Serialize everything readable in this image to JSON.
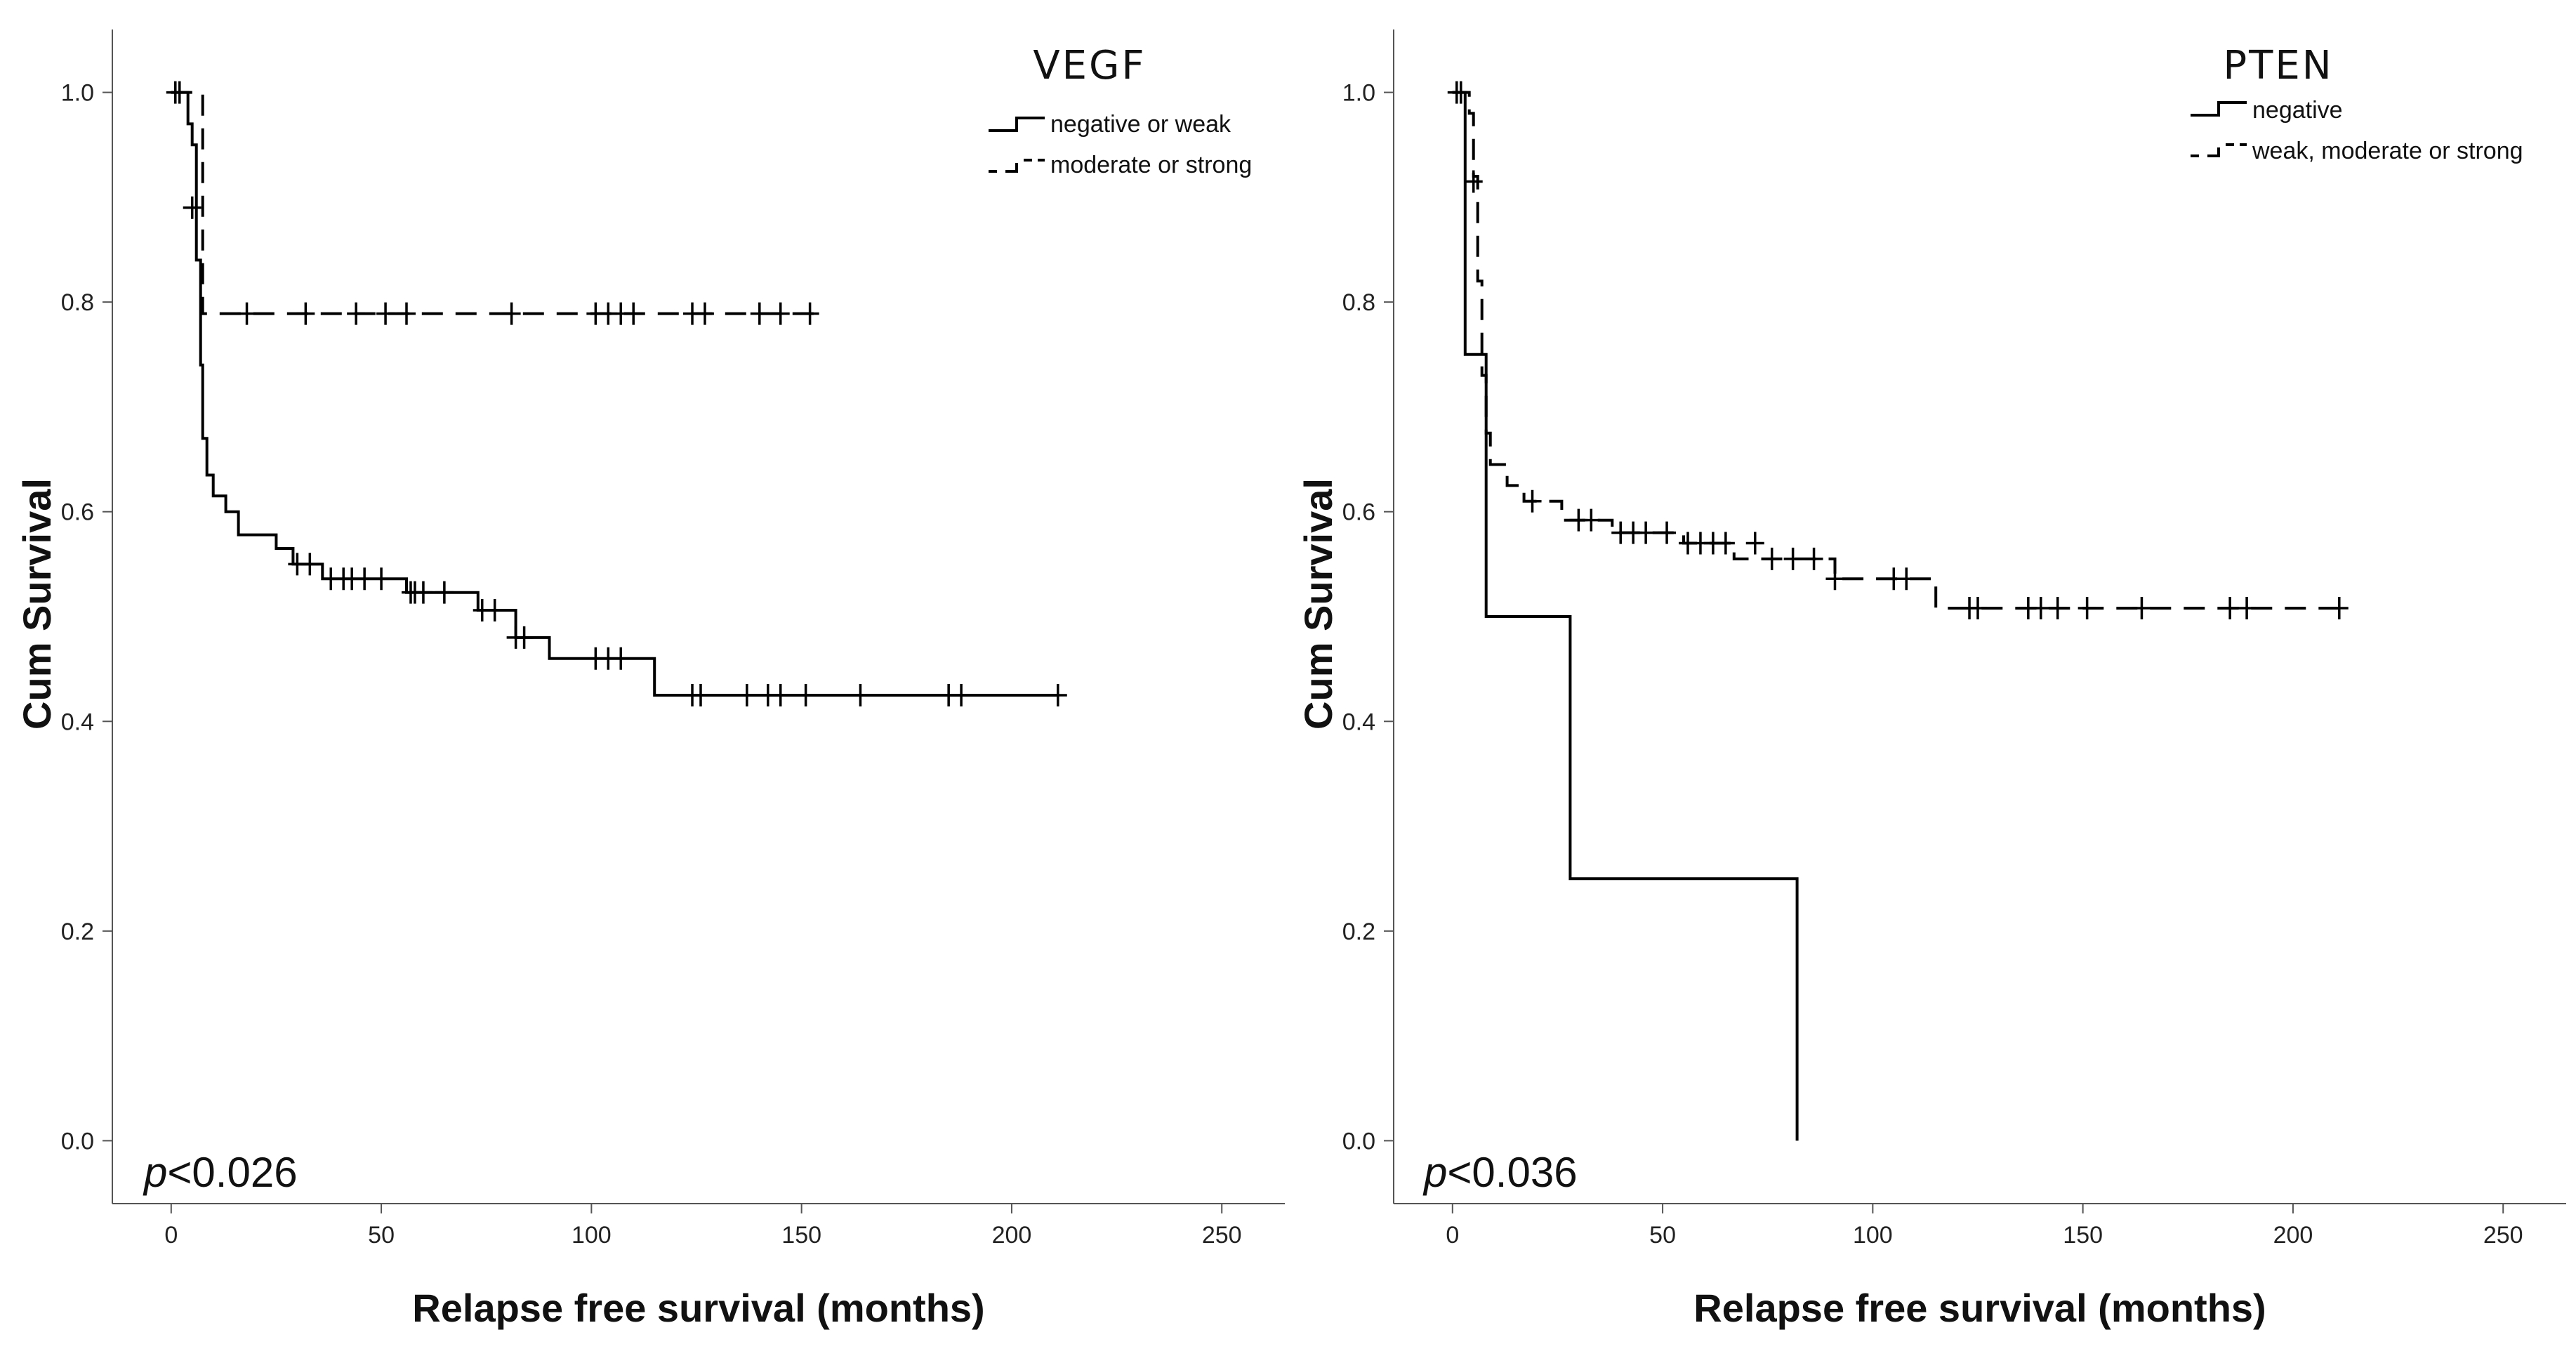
{
  "chart_data": [
    {
      "type": "line",
      "subtype": "kaplan-meier",
      "title": "VEGF",
      "xlabel": "Relapse free survival (months)",
      "ylabel": "Cum Survival",
      "xlim": [
        -14,
        265
      ],
      "ylim": [
        -0.06,
        1.06
      ],
      "xticks": [
        0,
        50,
        100,
        150,
        200,
        250
      ],
      "yticks": [
        0.0,
        0.2,
        0.4,
        0.6,
        0.8,
        1.0
      ],
      "xtick_labels": [
        "0",
        "50",
        "100",
        "150",
        "200",
        "250"
      ],
      "ytick_labels": [
        "0.0",
        "0.2",
        "0.4",
        "0.6",
        "0.8",
        "1.0"
      ],
      "grid": false,
      "legend_position": "top-right",
      "annotation": {
        "prefix": "p",
        "text": "<0.026"
      },
      "series": [
        {
          "name": "negative or weak",
          "style": "solid",
          "steps": [
            [
              0,
              1.0
            ],
            [
              4,
              0.97
            ],
            [
              5,
              0.95
            ],
            [
              6,
              0.84
            ],
            [
              7,
              0.74
            ],
            [
              7.5,
              0.67
            ],
            [
              8.5,
              0.635
            ],
            [
              10,
              0.615
            ],
            [
              13,
              0.6
            ],
            [
              16,
              0.578
            ],
            [
              25,
              0.565
            ],
            [
              29,
              0.55
            ],
            [
              36,
              0.536
            ],
            [
              56,
              0.523
            ],
            [
              73,
              0.506
            ],
            [
              82,
              0.48
            ],
            [
              90,
              0.46
            ],
            [
              115,
              0.425
            ],
            [
              211,
              0.425
            ]
          ],
          "censored": [
            [
              1,
              1.0
            ],
            [
              2,
              1.0
            ],
            [
              30,
              0.55
            ],
            [
              33,
              0.55
            ],
            [
              38,
              0.536
            ],
            [
              41,
              0.536
            ],
            [
              43,
              0.536
            ],
            [
              46,
              0.536
            ],
            [
              50,
              0.536
            ],
            [
              57,
              0.523
            ],
            [
              58,
              0.523
            ],
            [
              60,
              0.523
            ],
            [
              65,
              0.523
            ],
            [
              74,
              0.506
            ],
            [
              77,
              0.506
            ],
            [
              82,
              0.48
            ],
            [
              84,
              0.48
            ],
            [
              101,
              0.46
            ],
            [
              104,
              0.46
            ],
            [
              107,
              0.46
            ],
            [
              124,
              0.425
            ],
            [
              126,
              0.425
            ],
            [
              137,
              0.425
            ],
            [
              142,
              0.425
            ],
            [
              145,
              0.425
            ],
            [
              151,
              0.425
            ],
            [
              164,
              0.425
            ],
            [
              185,
              0.425
            ],
            [
              188,
              0.425
            ],
            [
              211,
              0.425
            ]
          ]
        },
        {
          "name": "moderate or strong",
          "style": "dashed",
          "steps": [
            [
              0,
              1.0
            ],
            [
              6,
              1.0
            ],
            [
              7.5,
              0.789
            ],
            [
              153,
              0.789
            ]
          ],
          "censored": [
            [
              5,
              0.89
            ],
            [
              18,
              0.789
            ],
            [
              32,
              0.789
            ],
            [
              44,
              0.789
            ],
            [
              51,
              0.789
            ],
            [
              56,
              0.789
            ],
            [
              81,
              0.789
            ],
            [
              101,
              0.789
            ],
            [
              104,
              0.789
            ],
            [
              107,
              0.789
            ],
            [
              110,
              0.789
            ],
            [
              124,
              0.789
            ],
            [
              127,
              0.789
            ],
            [
              140,
              0.789
            ],
            [
              145,
              0.789
            ],
            [
              152,
              0.789
            ]
          ]
        }
      ]
    },
    {
      "type": "line",
      "subtype": "kaplan-meier",
      "title": "PTEN",
      "xlabel": "Relapse free survival (months)",
      "ylabel": "Cum Survival",
      "xlim": [
        -14,
        265
      ],
      "ylim": [
        -0.06,
        1.06
      ],
      "xticks": [
        0,
        50,
        100,
        150,
        200,
        250
      ],
      "yticks": [
        0.0,
        0.2,
        0.4,
        0.6,
        0.8,
        1.0
      ],
      "xtick_labels": [
        "0",
        "50",
        "100",
        "150",
        "200",
        "250"
      ],
      "ytick_labels": [
        "0.0",
        "0.2",
        "0.4",
        "0.6",
        "0.8",
        "1.0"
      ],
      "grid": false,
      "legend_position": "top-right",
      "annotation": {
        "prefix": "p",
        "text": "<0.036"
      },
      "series": [
        {
          "name": "negative",
          "style": "solid",
          "steps": [
            [
              0,
              1.0
            ],
            [
              3,
              0.75
            ],
            [
              8,
              0.5
            ],
            [
              28,
              0.25
            ],
            [
              82,
              0.0
            ]
          ],
          "censored": []
        },
        {
          "name": "weak, moderate or strong",
          "style": "dashed",
          "steps": [
            [
              0,
              1.0
            ],
            [
              2,
              1.0
            ],
            [
              4,
              0.98
            ],
            [
              5,
              0.92
            ],
            [
              6,
              0.82
            ],
            [
              7,
              0.73
            ],
            [
              8,
              0.675
            ],
            [
              9,
              0.645
            ],
            [
              13,
              0.625
            ],
            [
              17,
              0.61
            ],
            [
              26,
              0.592
            ],
            [
              38,
              0.58
            ],
            [
              55,
              0.57
            ],
            [
              67,
              0.555
            ],
            [
              91,
              0.536
            ],
            [
              115,
              0.508
            ],
            [
              211,
              0.508
            ]
          ],
          "censored": [
            [
              1,
              1.0
            ],
            [
              2,
              1.0
            ],
            [
              5,
              0.915
            ],
            [
              19,
              0.61
            ],
            [
              30,
              0.592
            ],
            [
              33,
              0.592
            ],
            [
              40,
              0.58
            ],
            [
              43,
              0.58
            ],
            [
              46,
              0.58
            ],
            [
              51,
              0.58
            ],
            [
              56,
              0.57
            ],
            [
              59,
              0.57
            ],
            [
              62,
              0.57
            ],
            [
              65,
              0.57
            ],
            [
              72,
              0.57
            ],
            [
              76,
              0.555
            ],
            [
              81,
              0.555
            ],
            [
              86,
              0.555
            ],
            [
              91,
              0.536
            ],
            [
              105,
              0.536
            ],
            [
              108,
              0.536
            ],
            [
              123,
              0.508
            ],
            [
              125,
              0.508
            ],
            [
              137,
              0.508
            ],
            [
              140,
              0.508
            ],
            [
              144,
              0.508
            ],
            [
              151,
              0.508
            ],
            [
              164,
              0.508
            ],
            [
              185,
              0.508
            ],
            [
              189,
              0.508
            ],
            [
              211,
              0.508
            ]
          ]
        }
      ]
    }
  ]
}
